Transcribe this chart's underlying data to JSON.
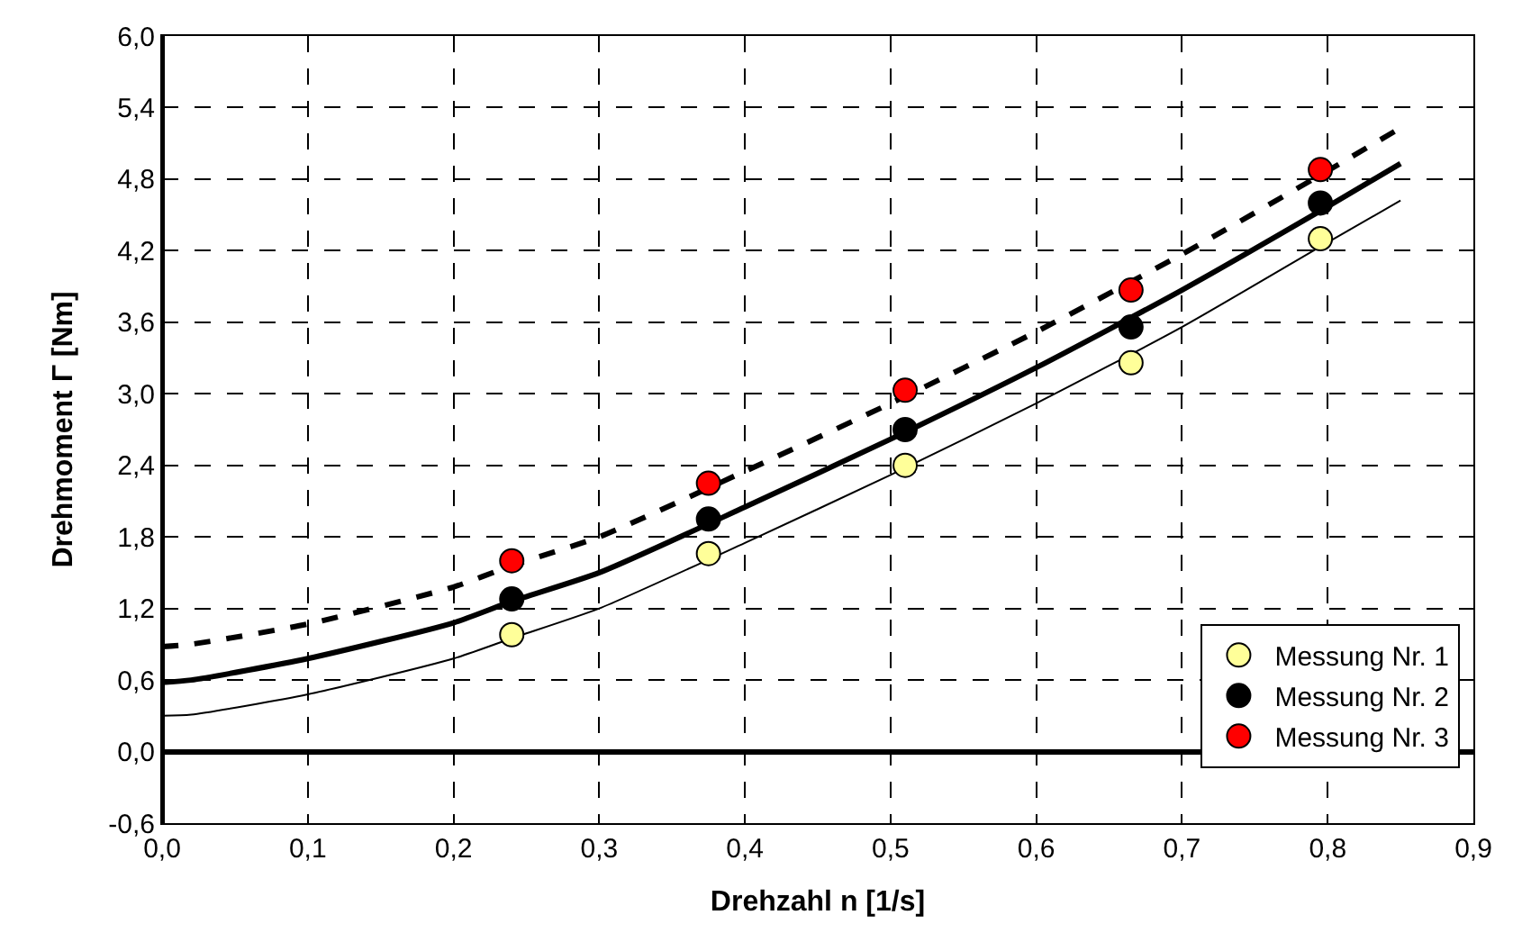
{
  "chart_data": {
    "type": "scatter",
    "xlabel": "Drehzahl n [1/s]",
    "ylabel": "Drehmoment Γ [Nm]",
    "xlim": [
      0,
      0.9
    ],
    "ylim": [
      -0.6,
      6.0
    ],
    "xticks": [
      {
        "value": 0,
        "label": "0,0"
      },
      {
        "value": 0.1,
        "label": "0,1"
      },
      {
        "value": 0.2,
        "label": "0,2"
      },
      {
        "value": 0.3,
        "label": "0,3"
      },
      {
        "value": 0.4,
        "label": "0,4"
      },
      {
        "value": 0.5,
        "label": "0,5"
      },
      {
        "value": 0.6,
        "label": "0,6"
      },
      {
        "value": 0.7,
        "label": "0,7"
      },
      {
        "value": 0.8,
        "label": "0,8"
      },
      {
        "value": 0.9,
        "label": "0,9"
      }
    ],
    "yticks": [
      {
        "value": -0.6,
        "label": "-0,6"
      },
      {
        "value": 0,
        "label": "0,0"
      },
      {
        "value": 0.6,
        "label": "0,6"
      },
      {
        "value": 1.2,
        "label": "1,2"
      },
      {
        "value": 1.8,
        "label": "1,8"
      },
      {
        "value": 2.4,
        "label": "2,4"
      },
      {
        "value": 3.0,
        "label": "3,0"
      },
      {
        "value": 3.6,
        "label": "3,6"
      },
      {
        "value": 4.2,
        "label": "4,2"
      },
      {
        "value": 4.8,
        "label": "4,8"
      },
      {
        "value": 5.4,
        "label": "5,4"
      },
      {
        "value": 6.0,
        "label": "6,0"
      }
    ],
    "grid": true,
    "legend": "bottom right",
    "series": [
      {
        "type": "line",
        "marker": "none",
        "color": "#000000",
        "line_style": "solid",
        "x": [
          0,
          0.02,
          0.1,
          0.2,
          0.24,
          0.3,
          0.4,
          0.5,
          0.6,
          0.7,
          0.8,
          0.85
        ],
        "values": [
          0.3,
          0.31,
          0.48,
          0.78,
          0.95,
          1.2,
          1.75,
          2.32,
          2.92,
          3.56,
          4.27,
          4.62
        ]
      },
      {
        "type": "line",
        "marker": "none",
        "color": "#000000",
        "line_style": "solid",
        "x": [
          0,
          0.02,
          0.1,
          0.2,
          0.24,
          0.3,
          0.4,
          0.5,
          0.6,
          0.7,
          0.8,
          0.85
        ],
        "values": [
          0.58,
          0.6,
          0.78,
          1.08,
          1.26,
          1.5,
          2.05,
          2.62,
          3.22,
          3.87,
          4.57,
          4.93
        ]
      },
      {
        "type": "line",
        "marker": "none",
        "color": "#000000",
        "line_style": "dashed",
        "x": [
          0,
          0.02,
          0.1,
          0.2,
          0.24,
          0.3,
          0.4,
          0.5,
          0.6,
          0.7,
          0.8,
          0.85
        ],
        "values": [
          0.88,
          0.9,
          1.07,
          1.38,
          1.56,
          1.8,
          2.35,
          2.92,
          3.52,
          4.17,
          4.87,
          5.23
        ]
      },
      {
        "name": "Messung Nr. 1",
        "marker": "circle",
        "color": "#ffff99",
        "x": [
          0.24,
          0.375,
          0.51,
          0.665,
          0.795
        ],
        "values": [
          0.98,
          1.66,
          2.4,
          3.26,
          4.3
        ]
      },
      {
        "name": "Messung Nr. 2",
        "marker": "circle",
        "color": "#000000",
        "x": [
          0.24,
          0.375,
          0.51,
          0.665,
          0.795
        ],
        "values": [
          1.28,
          1.95,
          2.7,
          3.56,
          4.6
        ]
      },
      {
        "name": "Messung Nr. 3",
        "marker": "circle",
        "color": "#ff0000",
        "x": [
          0.24,
          0.375,
          0.51,
          0.665,
          0.795
        ],
        "values": [
          1.6,
          2.25,
          3.03,
          3.87,
          4.88
        ]
      }
    ]
  }
}
